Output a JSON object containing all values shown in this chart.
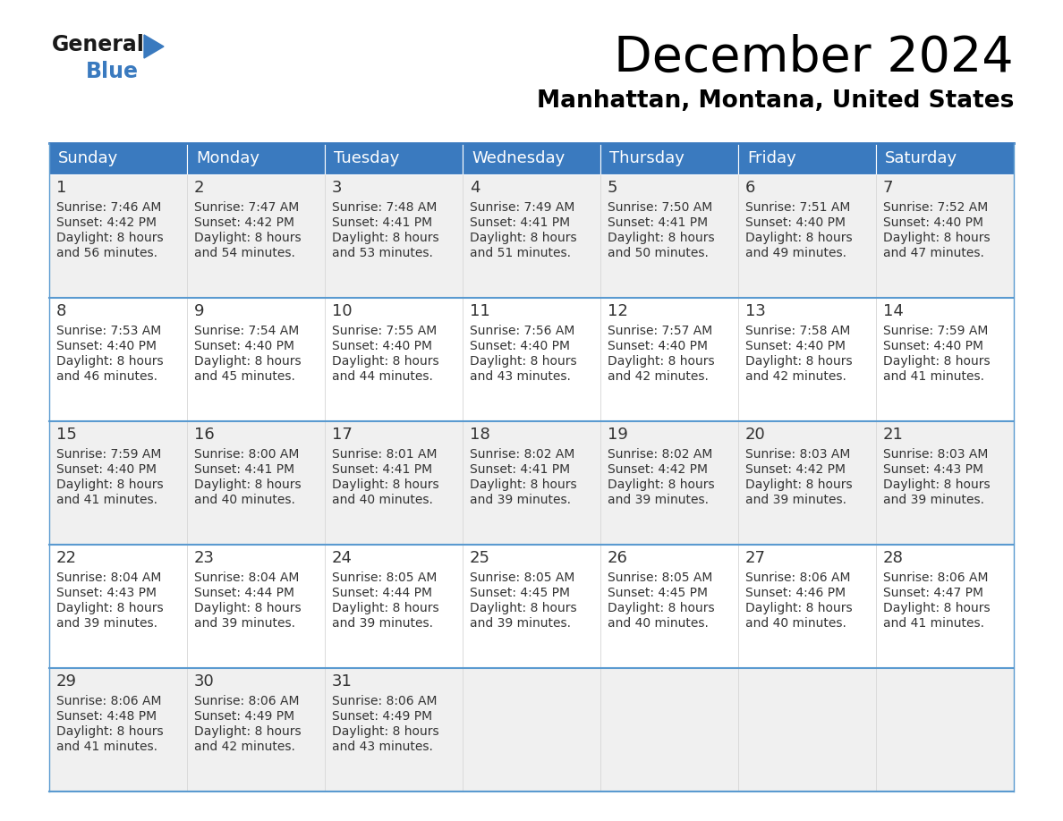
{
  "title": "December 2024",
  "subtitle": "Manhattan, Montana, United States",
  "header_color": "#3a7abf",
  "header_text_color": "#ffffff",
  "cell_bg_odd": "#f0f0f0",
  "cell_bg_even": "#ffffff",
  "border_color": "#3a7abf",
  "sep_line_color": "#5a9ad0",
  "text_color": "#333333",
  "day_headers": [
    "Sunday",
    "Monday",
    "Tuesday",
    "Wednesday",
    "Thursday",
    "Friday",
    "Saturday"
  ],
  "weeks": [
    [
      {
        "day": 1,
        "sunrise": "7:46 AM",
        "sunset": "4:42 PM",
        "daylight": "8 hours and 56 minutes"
      },
      {
        "day": 2,
        "sunrise": "7:47 AM",
        "sunset": "4:42 PM",
        "daylight": "8 hours and 54 minutes"
      },
      {
        "day": 3,
        "sunrise": "7:48 AM",
        "sunset": "4:41 PM",
        "daylight": "8 hours and 53 minutes"
      },
      {
        "day": 4,
        "sunrise": "7:49 AM",
        "sunset": "4:41 PM",
        "daylight": "8 hours and 51 minutes"
      },
      {
        "day": 5,
        "sunrise": "7:50 AM",
        "sunset": "4:41 PM",
        "daylight": "8 hours and 50 minutes"
      },
      {
        "day": 6,
        "sunrise": "7:51 AM",
        "sunset": "4:40 PM",
        "daylight": "8 hours and 49 minutes"
      },
      {
        "day": 7,
        "sunrise": "7:52 AM",
        "sunset": "4:40 PM",
        "daylight": "8 hours and 47 minutes"
      }
    ],
    [
      {
        "day": 8,
        "sunrise": "7:53 AM",
        "sunset": "4:40 PM",
        "daylight": "8 hours and 46 minutes"
      },
      {
        "day": 9,
        "sunrise": "7:54 AM",
        "sunset": "4:40 PM",
        "daylight": "8 hours and 45 minutes"
      },
      {
        "day": 10,
        "sunrise": "7:55 AM",
        "sunset": "4:40 PM",
        "daylight": "8 hours and 44 minutes"
      },
      {
        "day": 11,
        "sunrise": "7:56 AM",
        "sunset": "4:40 PM",
        "daylight": "8 hours and 43 minutes"
      },
      {
        "day": 12,
        "sunrise": "7:57 AM",
        "sunset": "4:40 PM",
        "daylight": "8 hours and 42 minutes"
      },
      {
        "day": 13,
        "sunrise": "7:58 AM",
        "sunset": "4:40 PM",
        "daylight": "8 hours and 42 minutes"
      },
      {
        "day": 14,
        "sunrise": "7:59 AM",
        "sunset": "4:40 PM",
        "daylight": "8 hours and 41 minutes"
      }
    ],
    [
      {
        "day": 15,
        "sunrise": "7:59 AM",
        "sunset": "4:40 PM",
        "daylight": "8 hours and 41 minutes"
      },
      {
        "day": 16,
        "sunrise": "8:00 AM",
        "sunset": "4:41 PM",
        "daylight": "8 hours and 40 minutes"
      },
      {
        "day": 17,
        "sunrise": "8:01 AM",
        "sunset": "4:41 PM",
        "daylight": "8 hours and 40 minutes"
      },
      {
        "day": 18,
        "sunrise": "8:02 AM",
        "sunset": "4:41 PM",
        "daylight": "8 hours and 39 minutes"
      },
      {
        "day": 19,
        "sunrise": "8:02 AM",
        "sunset": "4:42 PM",
        "daylight": "8 hours and 39 minutes"
      },
      {
        "day": 20,
        "sunrise": "8:03 AM",
        "sunset": "4:42 PM",
        "daylight": "8 hours and 39 minutes"
      },
      {
        "day": 21,
        "sunrise": "8:03 AM",
        "sunset": "4:43 PM",
        "daylight": "8 hours and 39 minutes"
      }
    ],
    [
      {
        "day": 22,
        "sunrise": "8:04 AM",
        "sunset": "4:43 PM",
        "daylight": "8 hours and 39 minutes"
      },
      {
        "day": 23,
        "sunrise": "8:04 AM",
        "sunset": "4:44 PM",
        "daylight": "8 hours and 39 minutes"
      },
      {
        "day": 24,
        "sunrise": "8:05 AM",
        "sunset": "4:44 PM",
        "daylight": "8 hours and 39 minutes"
      },
      {
        "day": 25,
        "sunrise": "8:05 AM",
        "sunset": "4:45 PM",
        "daylight": "8 hours and 39 minutes"
      },
      {
        "day": 26,
        "sunrise": "8:05 AM",
        "sunset": "4:45 PM",
        "daylight": "8 hours and 40 minutes"
      },
      {
        "day": 27,
        "sunrise": "8:06 AM",
        "sunset": "4:46 PM",
        "daylight": "8 hours and 40 minutes"
      },
      {
        "day": 28,
        "sunrise": "8:06 AM",
        "sunset": "4:47 PM",
        "daylight": "8 hours and 41 minutes"
      }
    ],
    [
      {
        "day": 29,
        "sunrise": "8:06 AM",
        "sunset": "4:48 PM",
        "daylight": "8 hours and 41 minutes"
      },
      {
        "day": 30,
        "sunrise": "8:06 AM",
        "sunset": "4:49 PM",
        "daylight": "8 hours and 42 minutes"
      },
      {
        "day": 31,
        "sunrise": "8:06 AM",
        "sunset": "4:49 PM",
        "daylight": "8 hours and 43 minutes"
      },
      null,
      null,
      null,
      null
    ]
  ],
  "logo_text_general": "General",
  "logo_text_blue": "Blue",
  "logo_color_general": "#1a1a1a",
  "logo_color_blue": "#3a7abf",
  "logo_triangle_color": "#3a7abf"
}
